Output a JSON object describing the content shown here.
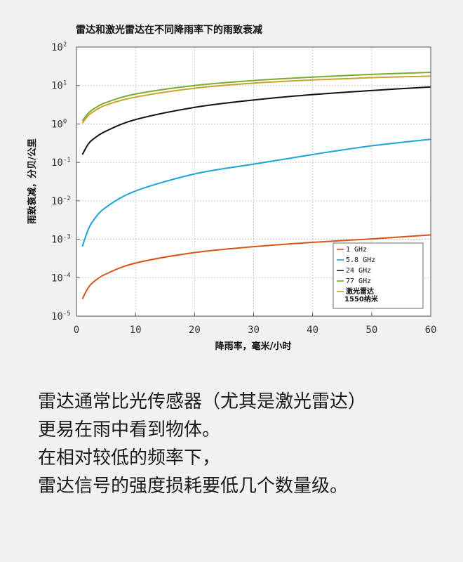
{
  "chart_data": {
    "type": "line",
    "title": "雷达和激光雷达在不同降雨率下的雨致衰减",
    "xlabel": "降雨率，毫米/小时",
    "ylabel": "雨致衰减，分贝/公里",
    "xlim": [
      0,
      60
    ],
    "ylim": [
      1e-05,
      100
    ],
    "yscale": "log",
    "grid": true,
    "legend_position": "bottom-right",
    "x_ticks": [
      "0",
      "10",
      "20",
      "30",
      "40",
      "50",
      "60"
    ],
    "y_ticks": [
      {
        "base": "10",
        "exp": "2",
        "value": 100
      },
      {
        "base": "10",
        "exp": "1",
        "value": 10
      },
      {
        "base": "10",
        "exp": "0",
        "value": 1
      },
      {
        "base": "10",
        "exp": "-1",
        "value": 0.1
      },
      {
        "base": "10",
        "exp": "-2",
        "value": 0.01
      },
      {
        "base": "10",
        "exp": "-3",
        "value": 0.001
      },
      {
        "base": "10",
        "exp": "-4",
        "value": 0.0001
      },
      {
        "base": "10",
        "exp": "-5",
        "value": 1e-05
      }
    ],
    "x": [
      1,
      2,
      3,
      5,
      10,
      20,
      30,
      40,
      50,
      60
    ],
    "series": [
      {
        "name": "1 GHz",
        "color": "#d95319",
        "values": [
          2.8e-05,
          5.5e-05,
          8e-05,
          0.000125,
          0.00024,
          0.00045,
          0.00064,
          0.00083,
          0.00102,
          0.0013
        ]
      },
      {
        "name": "5.8 GHz",
        "color": "#1aa3d9",
        "values": [
          0.00065,
          0.0018,
          0.0033,
          0.0068,
          0.018,
          0.05,
          0.09,
          0.16,
          0.27,
          0.4
        ]
      },
      {
        "name": "24 GHz",
        "color": "#111111",
        "values": [
          0.16,
          0.3,
          0.42,
          0.65,
          1.3,
          2.7,
          4.2,
          5.8,
          7.4,
          9.2
        ]
      },
      {
        "name": "77 GHz",
        "color": "#77ac30",
        "values": [
          1.2,
          1.9,
          2.5,
          3.6,
          6.0,
          10.0,
          13.5,
          16.5,
          19.5,
          22
        ]
      },
      {
        "name_lines": [
          "激光雷达",
          "1550纳米"
        ],
        "color": "#c9a227",
        "values": [
          1.05,
          1.65,
          2.15,
          3.1,
          5.0,
          8.5,
          11.5,
          14.0,
          16.0,
          17.5
        ]
      }
    ]
  },
  "caption": {
    "lines": [
      "雷达通常比光传感器（尤其是激光雷达）",
      "更易在雨中看到物体。",
      "在相对较低的频率下，",
      "雷达信号的强度损耗要低几个数量级。"
    ]
  }
}
